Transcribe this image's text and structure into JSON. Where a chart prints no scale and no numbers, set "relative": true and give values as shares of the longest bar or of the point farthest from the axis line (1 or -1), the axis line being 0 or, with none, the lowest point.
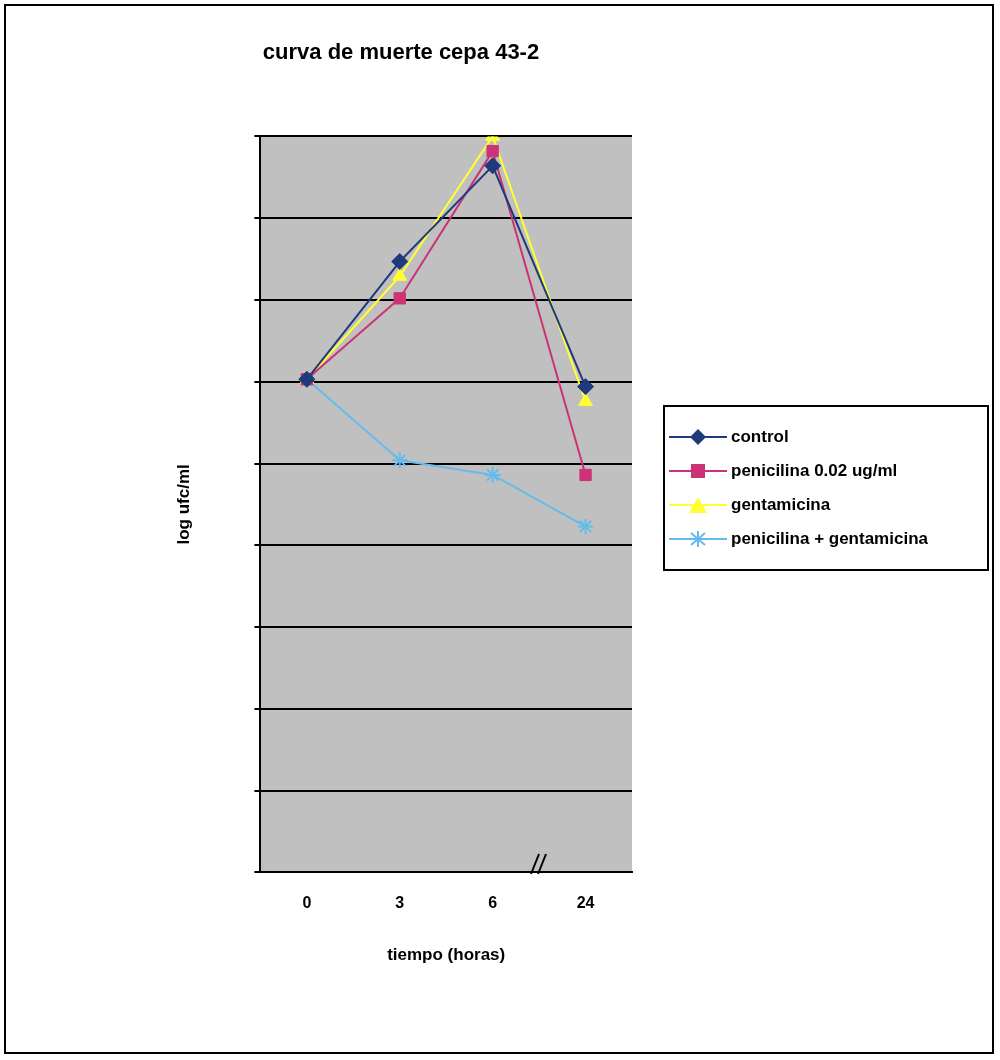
{
  "chart_data": {
    "type": "line",
    "title": "curva de muerte cepa 43-2",
    "xlabel": "tiempo (horas)",
    "ylabel": "log ufc/ml",
    "relative": true,
    "tick_labels": "x",
    "grid": "y",
    "legend": "right",
    "line_style": "solid",
    "categories": [
      "0",
      "3",
      "6",
      "24"
    ],
    "series": [
      {
        "name": "control",
        "color": "#1f3a7a",
        "marker": "diamond",
        "values": [
          0.67,
          0.83,
          0.96,
          0.66
        ]
      },
      {
        "name": "penicilina 0.02 ug/ml",
        "color": "#cc3377",
        "marker": "square",
        "values": [
          0.67,
          0.78,
          0.98,
          0.54
        ]
      },
      {
        "name": "gentamicina",
        "color": "#ffff33",
        "marker": "triangle",
        "values": [
          0.67,
          0.81,
          1,
          0.64
        ]
      },
      {
        "name": "penicilina + gentamicina",
        "color": "#66bbee",
        "marker": "cross",
        "values": [
          0.67,
          0.56,
          0.54,
          0.47
        ]
      }
    ]
  }
}
